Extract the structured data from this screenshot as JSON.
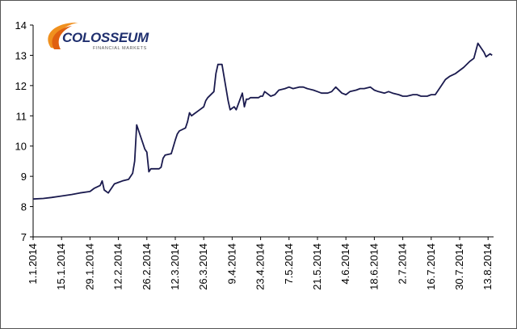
{
  "logo": {
    "name": "COLOSSEUM",
    "tagline": "FINANCIAL MARKETS"
  },
  "chart_data": {
    "type": "line",
    "title": "",
    "xlabel": "",
    "ylabel": "",
    "ylim": [
      7,
      14
    ],
    "yticks": [
      7,
      8,
      9,
      10,
      11,
      12,
      13,
      14
    ],
    "xlim": [
      "2014-01-01",
      "2014-08-18"
    ],
    "xticks": [
      "1.1.2014",
      "15.1.2014",
      "29.1.2014",
      "12.2.2014",
      "26.2.2014",
      "12.3.2014",
      "26.3.2014",
      "9.4.2014",
      "23.4.2014",
      "7.5.2014",
      "21.5.2014",
      "4.6.2014",
      "18.6.2014",
      "2.7.2014",
      "16.7.2014",
      "30.7.2014",
      "13.8.2014"
    ],
    "grid": false,
    "legend": "none",
    "line_color": "#1a1a4e",
    "series": [
      {
        "x": [
          "2014-01-01",
          "2014-01-06",
          "2014-01-10",
          "2014-01-15",
          "2014-01-20",
          "2014-01-24",
          "2014-01-29",
          "2014-01-31",
          "2014-02-03",
          "2014-02-04",
          "2014-02-05",
          "2014-02-06",
          "2014-02-07",
          "2014-02-10",
          "2014-02-12",
          "2014-02-14",
          "2014-02-17",
          "2014-02-19",
          "2014-02-20",
          "2014-02-21",
          "2014-02-24",
          "2014-02-25",
          "2014-02-26",
          "2014-02-27",
          "2014-02-28",
          "2014-03-03",
          "2014-03-04",
          "2014-03-05",
          "2014-03-06",
          "2014-03-07",
          "2014-03-10",
          "2014-03-12",
          "2014-03-13",
          "2014-03-14",
          "2014-03-17",
          "2014-03-18",
          "2014-03-19",
          "2014-03-20",
          "2014-03-21",
          "2014-03-24",
          "2014-03-26",
          "2014-03-27",
          "2014-03-28",
          "2014-03-31",
          "2014-04-01",
          "2014-04-02",
          "2014-04-03",
          "2014-04-04",
          "2014-04-07",
          "2014-04-08",
          "2014-04-09",
          "2014-04-10",
          "2014-04-11",
          "2014-04-14",
          "2014-04-15",
          "2014-04-16",
          "2014-04-17",
          "2014-04-18",
          "2014-04-22",
          "2014-04-23",
          "2014-04-24",
          "2014-04-25",
          "2014-04-28",
          "2014-04-30",
          "2014-05-02",
          "2014-05-05",
          "2014-05-07",
          "2014-05-09",
          "2014-05-12",
          "2014-05-14",
          "2014-05-16",
          "2014-05-19",
          "2014-05-21",
          "2014-05-23",
          "2014-05-26",
          "2014-05-28",
          "2014-05-30",
          "2014-06-02",
          "2014-06-04",
          "2014-06-06",
          "2014-06-09",
          "2014-06-11",
          "2014-06-13",
          "2014-06-16",
          "2014-06-18",
          "2014-06-20",
          "2014-06-23",
          "2014-06-25",
          "2014-06-27",
          "2014-06-30",
          "2014-07-02",
          "2014-07-04",
          "2014-07-07",
          "2014-07-09",
          "2014-07-11",
          "2014-07-14",
          "2014-07-16",
          "2014-07-18",
          "2014-07-21",
          "2014-07-23",
          "2014-07-25",
          "2014-07-28",
          "2014-07-30",
          "2014-08-01",
          "2014-08-04",
          "2014-08-06",
          "2014-08-08",
          "2014-08-11",
          "2014-08-12",
          "2014-08-13",
          "2014-08-14",
          "2014-08-15"
        ],
        "values": [
          8.25,
          8.27,
          8.3,
          8.35,
          8.4,
          8.45,
          8.5,
          8.6,
          8.7,
          8.85,
          8.55,
          8.5,
          8.45,
          8.75,
          8.8,
          8.85,
          8.9,
          9.1,
          9.5,
          10.7,
          10.1,
          9.9,
          9.8,
          9.15,
          9.25,
          9.25,
          9.25,
          9.3,
          9.6,
          9.7,
          9.75,
          10.2,
          10.4,
          10.5,
          10.6,
          10.8,
          11.1,
          11.0,
          11.05,
          11.2,
          11.3,
          11.5,
          11.6,
          11.8,
          12.4,
          12.7,
          12.7,
          12.7,
          11.5,
          11.2,
          11.25,
          11.3,
          11.2,
          11.75,
          11.3,
          11.55,
          11.55,
          11.6,
          11.6,
          11.65,
          11.65,
          11.8,
          11.65,
          11.7,
          11.85,
          11.9,
          11.95,
          11.9,
          11.95,
          11.95,
          11.9,
          11.85,
          11.8,
          11.75,
          11.75,
          11.8,
          11.95,
          11.75,
          11.7,
          11.8,
          11.85,
          11.9,
          11.9,
          11.95,
          11.85,
          11.8,
          11.75,
          11.8,
          11.75,
          11.7,
          11.65,
          11.65,
          11.7,
          11.7,
          11.65,
          11.65,
          11.7,
          11.7,
          12.0,
          12.2,
          12.3,
          12.4,
          12.5,
          12.6,
          12.8,
          12.9,
          13.4,
          13.1,
          12.95,
          13.0,
          13.05,
          13.0
        ]
      }
    ]
  }
}
